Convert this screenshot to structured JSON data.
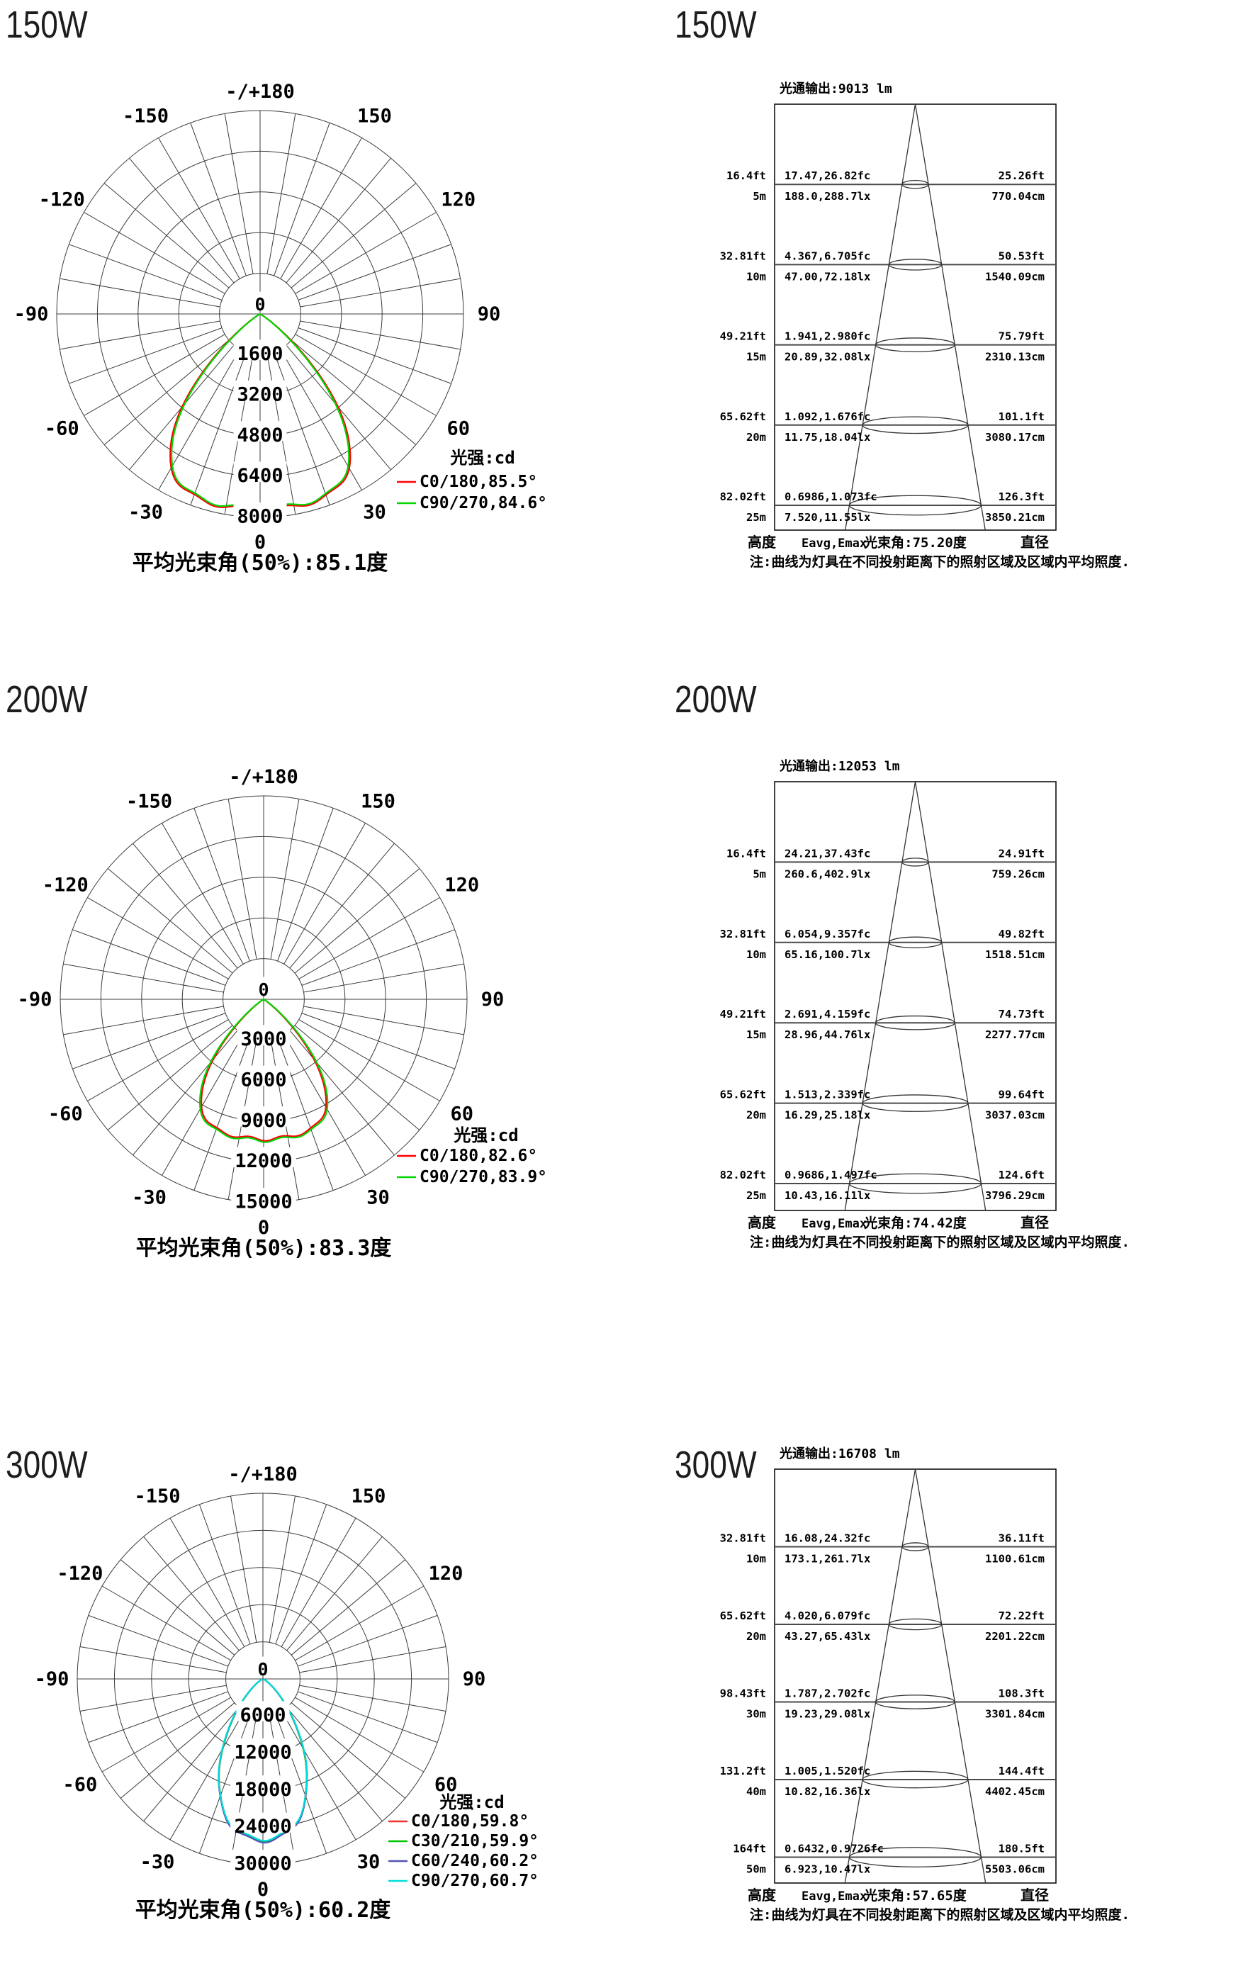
{
  "page": {
    "background": "#ffffff"
  },
  "sections": [
    {
      "id": "150w",
      "title_left": "150W",
      "title_right": "150W",
      "polar": {
        "legend_title": "光强:cd",
        "caption": "平均光束角(50%):85.1度",
        "center_label": "0",
        "top_angle_label": "-/+180",
        "bottom_angle_label": "0",
        "angle_labels_left": [
          "-30",
          "-60",
          "-90",
          "-120",
          "-150"
        ],
        "angle_labels_right": [
          "30",
          "60",
          "90",
          "120",
          "150"
        ],
        "rings": [
          "1600",
          "3200",
          "4800",
          "6400",
          "8000"
        ],
        "ring_max": 8000,
        "series": [
          {
            "label": "C0/180,85.5°",
            "color": "#ff0000",
            "i_max": 7700,
            "half_angle_50": 42.75,
            "falloff": 5.5
          },
          {
            "label": "C90/270,84.6°",
            "color": "#00d600",
            "i_max": 7650,
            "half_angle_50": 42.3,
            "falloff": 5.5
          }
        ]
      },
      "cone": {
        "flux_label": "光通输出:9013 lm",
        "beam_label": "光束角:75.20度",
        "footer_height": "高度",
        "footer_e": "Eavg,Emax",
        "footer_d": "直径",
        "note": "注:曲线为灯具在不同投射距离下的照射区域及区域内平均照度.",
        "rows": [
          {
            "ft": "16.4ft",
            "m": "5m",
            "fc": "17.47,26.82fc",
            "lx": "188.0,288.7lx",
            "dft": "25.26ft",
            "dcm": "770.04cm",
            "depth": 5
          },
          {
            "ft": "32.81ft",
            "m": "10m",
            "fc": "4.367,6.705fc",
            "lx": "47.00,72.18lx",
            "dft": "50.53ft",
            "dcm": "1540.09cm",
            "depth": 10
          },
          {
            "ft": "49.21ft",
            "m": "15m",
            "fc": "1.941,2.980fc",
            "lx": "20.89,32.08lx",
            "dft": "75.79ft",
            "dcm": "2310.13cm",
            "depth": 15
          },
          {
            "ft": "65.62ft",
            "m": "20m",
            "fc": "1.092,1.676fc",
            "lx": "11.75,18.04lx",
            "dft": "101.1ft",
            "dcm": "3080.17cm",
            "depth": 20
          },
          {
            "ft": "82.02ft",
            "m": "25m",
            "fc": "0.6986,1.073fc",
            "lx": "7.520,11.55lx",
            "dft": "126.3ft",
            "dcm": "3850.21cm",
            "depth": 25
          }
        ]
      }
    },
    {
      "id": "200w",
      "title_left": "200W",
      "title_right": "200W",
      "polar": {
        "legend_title": "光强:cd",
        "caption": "平均光束角(50%):83.3度",
        "center_label": "0",
        "top_angle_label": "-/+180",
        "bottom_angle_label": "0",
        "angle_labels_left": [
          "-30",
          "-60",
          "-90",
          "-120",
          "-150"
        ],
        "angle_labels_right": [
          "30",
          "60",
          "90",
          "120",
          "150"
        ],
        "rings": [
          "3000",
          "6000",
          "9000",
          "12000",
          "15000"
        ],
        "ring_max": 15000,
        "series": [
          {
            "label": "C0/180,82.6°",
            "color": "#ff0000",
            "i_max": 10300,
            "half_angle_50": 41.3,
            "falloff": 5.5
          },
          {
            "label": "C90/270,83.9°",
            "color": "#00d600",
            "i_max": 10400,
            "half_angle_50": 41.95,
            "falloff": 5.5
          }
        ]
      },
      "cone": {
        "flux_label": "光通输出:12053 lm",
        "beam_label": "光束角:74.42度",
        "footer_height": "高度",
        "footer_e": "Eavg,Emax",
        "footer_d": "直径",
        "note": "注:曲线为灯具在不同投射距离下的照射区域及区域内平均照度.",
        "rows": [
          {
            "ft": "16.4ft",
            "m": "5m",
            "fc": "24.21,37.43fc",
            "lx": "260.6,402.9lx",
            "dft": "24.91ft",
            "dcm": "759.26cm",
            "depth": 5
          },
          {
            "ft": "32.81ft",
            "m": "10m",
            "fc": "6.054,9.357fc",
            "lx": "65.16,100.7lx",
            "dft": "49.82ft",
            "dcm": "1518.51cm",
            "depth": 10
          },
          {
            "ft": "49.21ft",
            "m": "15m",
            "fc": "2.691,4.159fc",
            "lx": "28.96,44.76lx",
            "dft": "74.73ft",
            "dcm": "2277.77cm",
            "depth": 15
          },
          {
            "ft": "65.62ft",
            "m": "20m",
            "fc": "1.513,2.339fc",
            "lx": "16.29,25.18lx",
            "dft": "99.64ft",
            "dcm": "3037.03cm",
            "depth": 20
          },
          {
            "ft": "82.02ft",
            "m": "25m",
            "fc": "0.9686,1.497fc",
            "lx": "10.43,16.11lx",
            "dft": "124.6ft",
            "dcm": "3796.29cm",
            "depth": 25
          }
        ]
      }
    },
    {
      "id": "300w",
      "title_left": "300W",
      "title_right": "300W",
      "polar": {
        "legend_title": "光强:cd",
        "caption": "平均光束角(50%):60.2度",
        "center_label": "0",
        "top_angle_label": "-/+180",
        "bottom_angle_label": "0",
        "angle_labels_left": [
          "-30",
          "-60",
          "-90",
          "-120",
          "-150"
        ],
        "angle_labels_right": [
          "30",
          "60",
          "90",
          "120",
          "150"
        ],
        "rings": [
          "6000",
          "12000",
          "18000",
          "24000",
          "30000"
        ],
        "ring_max": 30000,
        "series": [
          {
            "label": "C0/180,59.8°",
            "color": "#f03030",
            "i_max": 26000,
            "half_angle_50": 29.9,
            "falloff": 2.5
          },
          {
            "label": "C30/210,59.9°",
            "color": "#00c800",
            "i_max": 26000,
            "half_angle_50": 29.95,
            "falloff": 2.5
          },
          {
            "label": "C60/240,60.2°",
            "color": "#5353b4",
            "i_max": 26100,
            "half_angle_50": 30.1,
            "falloff": 2.5
          },
          {
            "label": "C90/270,60.7°",
            "color": "#00dcdc",
            "i_max": 25800,
            "half_angle_50": 30.35,
            "falloff": 2.5
          }
        ]
      },
      "cone": {
        "flux_label": "光通输出:16708 lm",
        "beam_label": "光束角:57.65度",
        "footer_height": "高度",
        "footer_e": "Eavg,Emax",
        "footer_d": "直径",
        "note": "注:曲线为灯具在不同投射距离下的照射区域及区域内平均照度.",
        "rows": [
          {
            "ft": "32.81ft",
            "m": "10m",
            "fc": "16.08,24.32fc",
            "lx": "173.1,261.7lx",
            "dft": "36.11ft",
            "dcm": "1100.61cm",
            "depth": 10
          },
          {
            "ft": "65.62ft",
            "m": "20m",
            "fc": "4.020,6.079fc",
            "lx": "43.27,65.43lx",
            "dft": "72.22ft",
            "dcm": "2201.22cm",
            "depth": 20
          },
          {
            "ft": "98.43ft",
            "m": "30m",
            "fc": "1.787,2.702fc",
            "lx": "19.23,29.08lx",
            "dft": "108.3ft",
            "dcm": "3301.84cm",
            "depth": 30
          },
          {
            "ft": "131.2ft",
            "m": "40m",
            "fc": "1.005,1.520fc",
            "lx": "10.82,16.36lx",
            "dft": "144.4ft",
            "dcm": "4402.45cm",
            "depth": 40
          },
          {
            "ft": "164ft",
            "m": "50m",
            "fc": "0.6432,0.9726fc",
            "lx": "6.923,10.47lx",
            "dft": "180.5ft",
            "dcm": "5503.06cm",
            "depth": 50
          }
        ]
      }
    }
  ],
  "chart_data": [
    {
      "id": "polar-150w",
      "type": "line",
      "polar": true,
      "title": "150W 光强:cd",
      "ylabel": "cd",
      "xlabel": "deg",
      "radial_rings": [
        1600,
        3200,
        4800,
        6400,
        8000
      ],
      "radial_max": 8000,
      "angle_grid_step_deg": 10,
      "angle_label_step_deg": 30,
      "caption": "平均光束角(50%):85.1度",
      "avg_beam_angle_50pct_deg": 85.1,
      "legend_position": "inside-right-bottom",
      "x_deg": [
        0,
        10,
        20,
        30,
        35,
        40,
        45,
        50,
        55,
        60
      ],
      "series": [
        {
          "name": "C0/180,85.5°",
          "color": "#ff0000",
          "beam_angle_deg": 85.5,
          "values_cd": [
            7700,
            7700,
            7620,
            6980,
            6110,
            4760,
            3070,
            1490,
            480,
            90
          ]
        },
        {
          "name": "C90/270,84.6°",
          "color": "#00d600",
          "beam_angle_deg": 84.6,
          "values_cd": [
            7650,
            7650,
            7550,
            6880,
            5980,
            4600,
            2950,
            1400,
            440,
            75
          ]
        }
      ]
    },
    {
      "id": "cone-150w",
      "type": "table",
      "title": "光通输出:9013 lm",
      "flux_lm": 9013,
      "beam_angle_deg": 75.2,
      "columns": [
        "高度(ft)",
        "高度(m)",
        "Eavg,Emax(fc)",
        "Eavg,Emax(lx)",
        "直径(ft)",
        "直径(cm)"
      ],
      "rows": [
        [
          "16.4ft",
          "5m",
          "17.47,26.82fc",
          "188.0,288.7lx",
          "25.26ft",
          "770.04cm"
        ],
        [
          "32.81ft",
          "10m",
          "4.367,6.705fc",
          "47.00,72.18lx",
          "50.53ft",
          "1540.09cm"
        ],
        [
          "49.21ft",
          "15m",
          "1.941,2.980fc",
          "20.89,32.08lx",
          "75.79ft",
          "2310.13cm"
        ],
        [
          "65.62ft",
          "20m",
          "1.092,1.676fc",
          "11.75,18.04lx",
          "101.1ft",
          "3080.17cm"
        ],
        [
          "82.02ft",
          "25m",
          "0.6986,1.073fc",
          "7.520,11.55lx",
          "126.3ft",
          "3850.21cm"
        ]
      ]
    },
    {
      "id": "polar-200w",
      "type": "line",
      "polar": true,
      "title": "200W 光强:cd",
      "ylabel": "cd",
      "xlabel": "deg",
      "radial_rings": [
        3000,
        6000,
        9000,
        12000,
        15000
      ],
      "radial_max": 15000,
      "angle_grid_step_deg": 10,
      "angle_label_step_deg": 30,
      "caption": "平均光束角(50%):83.3度",
      "avg_beam_angle_50pct_deg": 83.3,
      "legend_position": "inside-right-bottom",
      "x_deg": [
        0,
        10,
        20,
        30,
        35,
        40,
        45,
        50,
        55,
        60
      ],
      "series": [
        {
          "name": "C0/180,82.6°",
          "color": "#ff0000",
          "beam_angle_deg": 82.6,
          "values_cd": [
            10300,
            10300,
            10170,
            9140,
            7790,
            5760,
            3390,
            1420,
            360,
            60
          ]
        },
        {
          "name": "C90/270,83.9°",
          "color": "#00d600",
          "beam_angle_deg": 83.9,
          "values_cd": [
            10400,
            10400,
            10290,
            9290,
            7990,
            5970,
            3560,
            1530,
            400,
            70
          ]
        }
      ]
    },
    {
      "id": "cone-200w",
      "type": "table",
      "title": "光通输出:12053 lm",
      "flux_lm": 12053,
      "beam_angle_deg": 74.42,
      "columns": [
        "高度(ft)",
        "高度(m)",
        "Eavg,Emax(fc)",
        "Eavg,Emax(lx)",
        "直径(ft)",
        "直径(cm)"
      ],
      "rows": [
        [
          "16.4ft",
          "5m",
          "24.21,37.43fc",
          "260.6,402.9lx",
          "24.91ft",
          "759.26cm"
        ],
        [
          "32.81ft",
          "10m",
          "6.054,9.357fc",
          "65.16,100.7lx",
          "49.82ft",
          "1518.51cm"
        ],
        [
          "49.21ft",
          "15m",
          "2.691,4.159fc",
          "28.96,44.76lx",
          "74.73ft",
          "2277.77cm"
        ],
        [
          "65.62ft",
          "20m",
          "1.513,2.339fc",
          "16.29,25.18lx",
          "99.64ft",
          "3037.03cm"
        ],
        [
          "82.02ft",
          "25m",
          "0.9686,1.497fc",
          "10.43,16.11lx",
          "124.6ft",
          "3796.29cm"
        ]
      ]
    },
    {
      "id": "polar-300w",
      "type": "line",
      "polar": true,
      "title": "300W 光强:cd",
      "ylabel": "cd",
      "xlabel": "deg",
      "radial_rings": [
        6000,
        12000,
        18000,
        24000,
        30000
      ],
      "radial_max": 30000,
      "angle_grid_step_deg": 10,
      "angle_label_step_deg": 30,
      "caption": "平均光束角(50%):60.2度",
      "avg_beam_angle_50pct_deg": 60.2,
      "legend_position": "inside-right-bottom",
      "x_deg": [
        0,
        10,
        20,
        30,
        40,
        50,
        60
      ],
      "series": [
        {
          "name": "C0/180,59.8°",
          "color": "#f03030",
          "beam_angle_deg": 59.8,
          "values_cd": [
            26000,
            24850,
            20180,
            12970,
            6190,
            2130,
            515
          ]
        },
        {
          "name": "C30/210,59.9°",
          "color": "#00c800",
          "beam_angle_deg": 59.9,
          "values_cd": [
            26000,
            24870,
            20230,
            13000,
            6230,
            2150,
            520
          ]
        },
        {
          "name": "C60/240,60.2°",
          "color": "#5353b4",
          "beam_angle_deg": 60.2,
          "values_cd": [
            26100,
            24980,
            20420,
            13240,
            6430,
            2260,
            560
          ]
        },
        {
          "name": "C90/270,60.7°",
          "color": "#00dcdc",
          "beam_angle_deg": 60.7,
          "values_cd": [
            25800,
            24740,
            20260,
            13300,
            6600,
            2390,
            610
          ]
        }
      ]
    },
    {
      "id": "cone-300w",
      "type": "table",
      "title": "光通输出:16708 lm",
      "flux_lm": 16708,
      "beam_angle_deg": 57.65,
      "columns": [
        "高度(ft)",
        "高度(m)",
        "Eavg,Emax(fc)",
        "Eavg,Emax(lx)",
        "直径(ft)",
        "直径(cm)"
      ],
      "rows": [
        [
          "32.81ft",
          "10m",
          "16.08,24.32fc",
          "173.1,261.7lx",
          "36.11ft",
          "1100.61cm"
        ],
        [
          "65.62ft",
          "20m",
          "4.020,6.079fc",
          "43.27,65.43lx",
          "72.22ft",
          "2201.22cm"
        ],
        [
          "98.43ft",
          "30m",
          "1.787,2.702fc",
          "19.23,29.08lx",
          "108.3ft",
          "3301.84cm"
        ],
        [
          "131.2ft",
          "40m",
          "1.005,1.520fc",
          "10.82,16.36lx",
          "144.4ft",
          "4402.45cm"
        ],
        [
          "164ft",
          "50m",
          "0.6432,0.9726fc",
          "6.923,10.47lx",
          "180.5ft",
          "5503.06cm"
        ]
      ]
    }
  ]
}
